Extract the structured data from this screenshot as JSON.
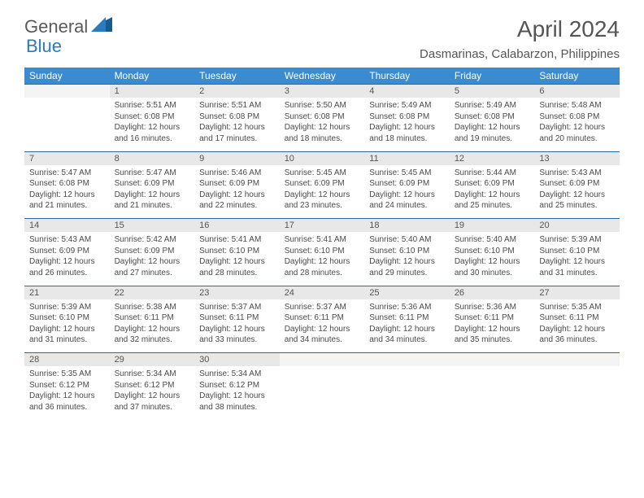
{
  "logo": {
    "text1": "General",
    "text2": "Blue"
  },
  "header": {
    "title": "April 2024",
    "location": "Dasmarinas, Calabarzon, Philippines"
  },
  "weekdays": [
    "Sunday",
    "Monday",
    "Tuesday",
    "Wednesday",
    "Thursday",
    "Friday",
    "Saturday"
  ],
  "colors": {
    "header_bg": "#3a8bd0",
    "header_text": "#ffffff",
    "daynum_bg": "#e8e8e8",
    "rule": "#2a6aa0",
    "logo_blue": "#2a7bc0",
    "text": "#4a4a4a"
  },
  "weeks": [
    [
      {
        "num": "",
        "sunrise": "",
        "sunset": "",
        "daylight": ""
      },
      {
        "num": "1",
        "sunrise": "Sunrise: 5:51 AM",
        "sunset": "Sunset: 6:08 PM",
        "daylight": "Daylight: 12 hours and 16 minutes."
      },
      {
        "num": "2",
        "sunrise": "Sunrise: 5:51 AM",
        "sunset": "Sunset: 6:08 PM",
        "daylight": "Daylight: 12 hours and 17 minutes."
      },
      {
        "num": "3",
        "sunrise": "Sunrise: 5:50 AM",
        "sunset": "Sunset: 6:08 PM",
        "daylight": "Daylight: 12 hours and 18 minutes."
      },
      {
        "num": "4",
        "sunrise": "Sunrise: 5:49 AM",
        "sunset": "Sunset: 6:08 PM",
        "daylight": "Daylight: 12 hours and 18 minutes."
      },
      {
        "num": "5",
        "sunrise": "Sunrise: 5:49 AM",
        "sunset": "Sunset: 6:08 PM",
        "daylight": "Daylight: 12 hours and 19 minutes."
      },
      {
        "num": "6",
        "sunrise": "Sunrise: 5:48 AM",
        "sunset": "Sunset: 6:08 PM",
        "daylight": "Daylight: 12 hours and 20 minutes."
      }
    ],
    [
      {
        "num": "7",
        "sunrise": "Sunrise: 5:47 AM",
        "sunset": "Sunset: 6:08 PM",
        "daylight": "Daylight: 12 hours and 21 minutes."
      },
      {
        "num": "8",
        "sunrise": "Sunrise: 5:47 AM",
        "sunset": "Sunset: 6:09 PM",
        "daylight": "Daylight: 12 hours and 21 minutes."
      },
      {
        "num": "9",
        "sunrise": "Sunrise: 5:46 AM",
        "sunset": "Sunset: 6:09 PM",
        "daylight": "Daylight: 12 hours and 22 minutes."
      },
      {
        "num": "10",
        "sunrise": "Sunrise: 5:45 AM",
        "sunset": "Sunset: 6:09 PM",
        "daylight": "Daylight: 12 hours and 23 minutes."
      },
      {
        "num": "11",
        "sunrise": "Sunrise: 5:45 AM",
        "sunset": "Sunset: 6:09 PM",
        "daylight": "Daylight: 12 hours and 24 minutes."
      },
      {
        "num": "12",
        "sunrise": "Sunrise: 5:44 AM",
        "sunset": "Sunset: 6:09 PM",
        "daylight": "Daylight: 12 hours and 25 minutes."
      },
      {
        "num": "13",
        "sunrise": "Sunrise: 5:43 AM",
        "sunset": "Sunset: 6:09 PM",
        "daylight": "Daylight: 12 hours and 25 minutes."
      }
    ],
    [
      {
        "num": "14",
        "sunrise": "Sunrise: 5:43 AM",
        "sunset": "Sunset: 6:09 PM",
        "daylight": "Daylight: 12 hours and 26 minutes."
      },
      {
        "num": "15",
        "sunrise": "Sunrise: 5:42 AM",
        "sunset": "Sunset: 6:09 PM",
        "daylight": "Daylight: 12 hours and 27 minutes."
      },
      {
        "num": "16",
        "sunrise": "Sunrise: 5:41 AM",
        "sunset": "Sunset: 6:10 PM",
        "daylight": "Daylight: 12 hours and 28 minutes."
      },
      {
        "num": "17",
        "sunrise": "Sunrise: 5:41 AM",
        "sunset": "Sunset: 6:10 PM",
        "daylight": "Daylight: 12 hours and 28 minutes."
      },
      {
        "num": "18",
        "sunrise": "Sunrise: 5:40 AM",
        "sunset": "Sunset: 6:10 PM",
        "daylight": "Daylight: 12 hours and 29 minutes."
      },
      {
        "num": "19",
        "sunrise": "Sunrise: 5:40 AM",
        "sunset": "Sunset: 6:10 PM",
        "daylight": "Daylight: 12 hours and 30 minutes."
      },
      {
        "num": "20",
        "sunrise": "Sunrise: 5:39 AM",
        "sunset": "Sunset: 6:10 PM",
        "daylight": "Daylight: 12 hours and 31 minutes."
      }
    ],
    [
      {
        "num": "21",
        "sunrise": "Sunrise: 5:39 AM",
        "sunset": "Sunset: 6:10 PM",
        "daylight": "Daylight: 12 hours and 31 minutes."
      },
      {
        "num": "22",
        "sunrise": "Sunrise: 5:38 AM",
        "sunset": "Sunset: 6:11 PM",
        "daylight": "Daylight: 12 hours and 32 minutes."
      },
      {
        "num": "23",
        "sunrise": "Sunrise: 5:37 AM",
        "sunset": "Sunset: 6:11 PM",
        "daylight": "Daylight: 12 hours and 33 minutes."
      },
      {
        "num": "24",
        "sunrise": "Sunrise: 5:37 AM",
        "sunset": "Sunset: 6:11 PM",
        "daylight": "Daylight: 12 hours and 34 minutes."
      },
      {
        "num": "25",
        "sunrise": "Sunrise: 5:36 AM",
        "sunset": "Sunset: 6:11 PM",
        "daylight": "Daylight: 12 hours and 34 minutes."
      },
      {
        "num": "26",
        "sunrise": "Sunrise: 5:36 AM",
        "sunset": "Sunset: 6:11 PM",
        "daylight": "Daylight: 12 hours and 35 minutes."
      },
      {
        "num": "27",
        "sunrise": "Sunrise: 5:35 AM",
        "sunset": "Sunset: 6:11 PM",
        "daylight": "Daylight: 12 hours and 36 minutes."
      }
    ],
    [
      {
        "num": "28",
        "sunrise": "Sunrise: 5:35 AM",
        "sunset": "Sunset: 6:12 PM",
        "daylight": "Daylight: 12 hours and 36 minutes."
      },
      {
        "num": "29",
        "sunrise": "Sunrise: 5:34 AM",
        "sunset": "Sunset: 6:12 PM",
        "daylight": "Daylight: 12 hours and 37 minutes."
      },
      {
        "num": "30",
        "sunrise": "Sunrise: 5:34 AM",
        "sunset": "Sunset: 6:12 PM",
        "daylight": "Daylight: 12 hours and 38 minutes."
      },
      {
        "num": "",
        "sunrise": "",
        "sunset": "",
        "daylight": ""
      },
      {
        "num": "",
        "sunrise": "",
        "sunset": "",
        "daylight": ""
      },
      {
        "num": "",
        "sunrise": "",
        "sunset": "",
        "daylight": ""
      },
      {
        "num": "",
        "sunrise": "",
        "sunset": "",
        "daylight": ""
      }
    ]
  ]
}
